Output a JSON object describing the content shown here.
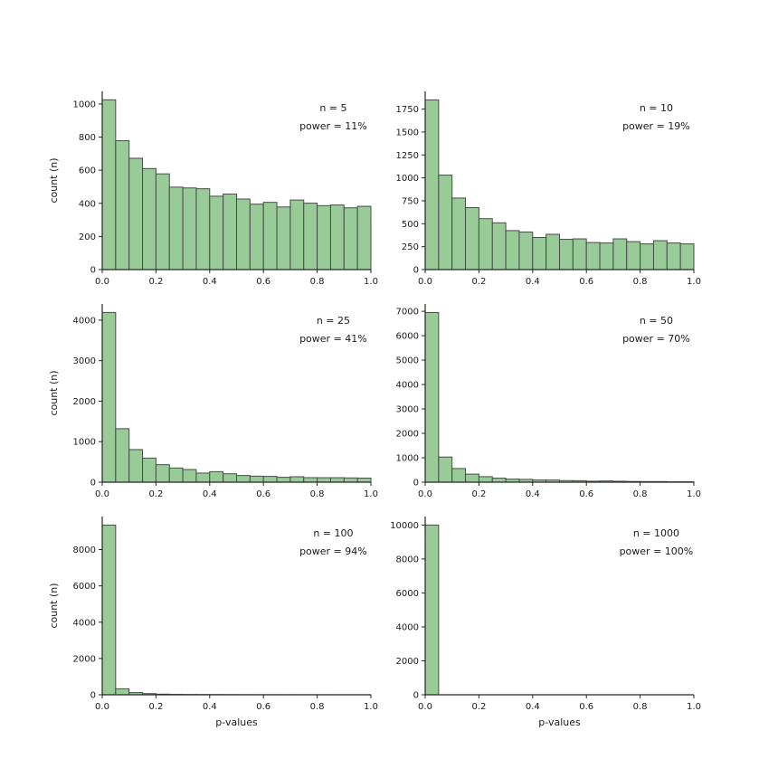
{
  "figure": {
    "background": "#ffffff",
    "bar_fill": "#98cb98",
    "bar_edge": "#454d45",
    "axis_color": "#262626",
    "text_color": "#1a1a1a",
    "ylabel": "count (n)",
    "xlabel": "p-values"
  },
  "chart_data": [
    {
      "type": "bar",
      "name": "histogram-n5",
      "annotation": {
        "n": "n = 5",
        "power": "power = 11%"
      },
      "bins": {
        "start": 0.0,
        "end": 1.0,
        "count": 20,
        "width": 0.05
      },
      "values": [
        1025,
        778,
        672,
        610,
        578,
        498,
        493,
        488,
        443,
        456,
        426,
        395,
        406,
        378,
        420,
        401,
        386,
        390,
        373,
        382
      ],
      "xlabel": "",
      "ylabel": "count (n)",
      "xlim": [
        0.0,
        1.0
      ],
      "ylim": [
        0,
        1076
      ],
      "xticks": [
        0.0,
        0.2,
        0.4,
        0.6,
        0.8,
        1.0
      ],
      "yticks": [
        0,
        200,
        400,
        600,
        800,
        1000
      ]
    },
    {
      "type": "bar",
      "name": "histogram-n10",
      "annotation": {
        "n": "n = 10",
        "power": "power = 19%"
      },
      "bins": {
        "start": 0.0,
        "end": 1.0,
        "count": 20,
        "width": 0.05
      },
      "values": [
        1850,
        1030,
        780,
        675,
        555,
        510,
        425,
        410,
        350,
        385,
        330,
        335,
        295,
        290,
        335,
        305,
        280,
        315,
        290,
        280
      ],
      "xlabel": "",
      "ylabel": "",
      "xlim": [
        0.0,
        1.0
      ],
      "ylim": [
        0,
        1943
      ],
      "xticks": [
        0.0,
        0.2,
        0.4,
        0.6,
        0.8,
        1.0
      ],
      "yticks": [
        0,
        250,
        500,
        750,
        1000,
        1250,
        1500,
        1750
      ]
    },
    {
      "type": "bar",
      "name": "histogram-n25",
      "annotation": {
        "n": "n = 25",
        "power": "power = 41%"
      },
      "bins": {
        "start": 0.0,
        "end": 1.0,
        "count": 20,
        "width": 0.05
      },
      "values": [
        4190,
        1320,
        805,
        595,
        432,
        350,
        312,
        225,
        260,
        208,
        165,
        148,
        142,
        120,
        134,
        112,
        110,
        110,
        105,
        100
      ],
      "xlabel": "",
      "ylabel": "count (n)",
      "xlim": [
        0.0,
        1.0
      ],
      "ylim": [
        0,
        4400
      ],
      "xticks": [
        0.0,
        0.2,
        0.4,
        0.6,
        0.8,
        1.0
      ],
      "yticks": [
        0,
        1000,
        2000,
        3000,
        4000
      ]
    },
    {
      "type": "bar",
      "name": "histogram-n50",
      "annotation": {
        "n": "n = 50",
        "power": "power = 70%"
      },
      "bins": {
        "start": 0.0,
        "end": 1.0,
        "count": 20,
        "width": 0.05
      },
      "values": [
        6950,
        1030,
        560,
        330,
        225,
        165,
        125,
        115,
        90,
        88,
        65,
        60,
        40,
        50,
        38,
        30,
        25,
        25,
        15,
        15
      ],
      "xlabel": "",
      "ylabel": "",
      "xlim": [
        0.0,
        1.0
      ],
      "ylim": [
        0,
        7300
      ],
      "xticks": [
        0.0,
        0.2,
        0.4,
        0.6,
        0.8,
        1.0
      ],
      "yticks": [
        0,
        1000,
        2000,
        3000,
        4000,
        5000,
        6000,
        7000
      ]
    },
    {
      "type": "bar",
      "name": "histogram-n100",
      "annotation": {
        "n": "n = 100",
        "power": "power = 94%"
      },
      "bins": {
        "start": 0.0,
        "end": 1.0,
        "count": 20,
        "width": 0.05
      },
      "values": [
        9350,
        330,
        120,
        65,
        35,
        22,
        15,
        12,
        10,
        8,
        6,
        5,
        5,
        4,
        4,
        3,
        3,
        2,
        2,
        2
      ],
      "xlabel": "p-values",
      "ylabel": "count (n)",
      "xlim": [
        0.0,
        1.0
      ],
      "ylim": [
        0,
        9820
      ],
      "xticks": [
        0.0,
        0.2,
        0.4,
        0.6,
        0.8,
        1.0
      ],
      "yticks": [
        0,
        2000,
        4000,
        6000,
        8000
      ]
    },
    {
      "type": "bar",
      "name": "histogram-n1000",
      "annotation": {
        "n": "n = 1000",
        "power": "power = 100%"
      },
      "bins": {
        "start": 0.0,
        "end": 1.0,
        "count": 20,
        "width": 0.05
      },
      "values": [
        10000,
        0,
        0,
        0,
        0,
        0,
        0,
        0,
        0,
        0,
        0,
        0,
        0,
        0,
        0,
        0,
        0,
        0,
        0,
        0
      ],
      "xlabel": "p-values",
      "ylabel": "",
      "xlim": [
        0.0,
        1.0
      ],
      "ylim": [
        0,
        10500
      ],
      "xticks": [
        0.0,
        0.2,
        0.4,
        0.6,
        0.8,
        1.0
      ],
      "yticks": [
        0,
        2000,
        4000,
        6000,
        8000,
        10000
      ]
    }
  ]
}
